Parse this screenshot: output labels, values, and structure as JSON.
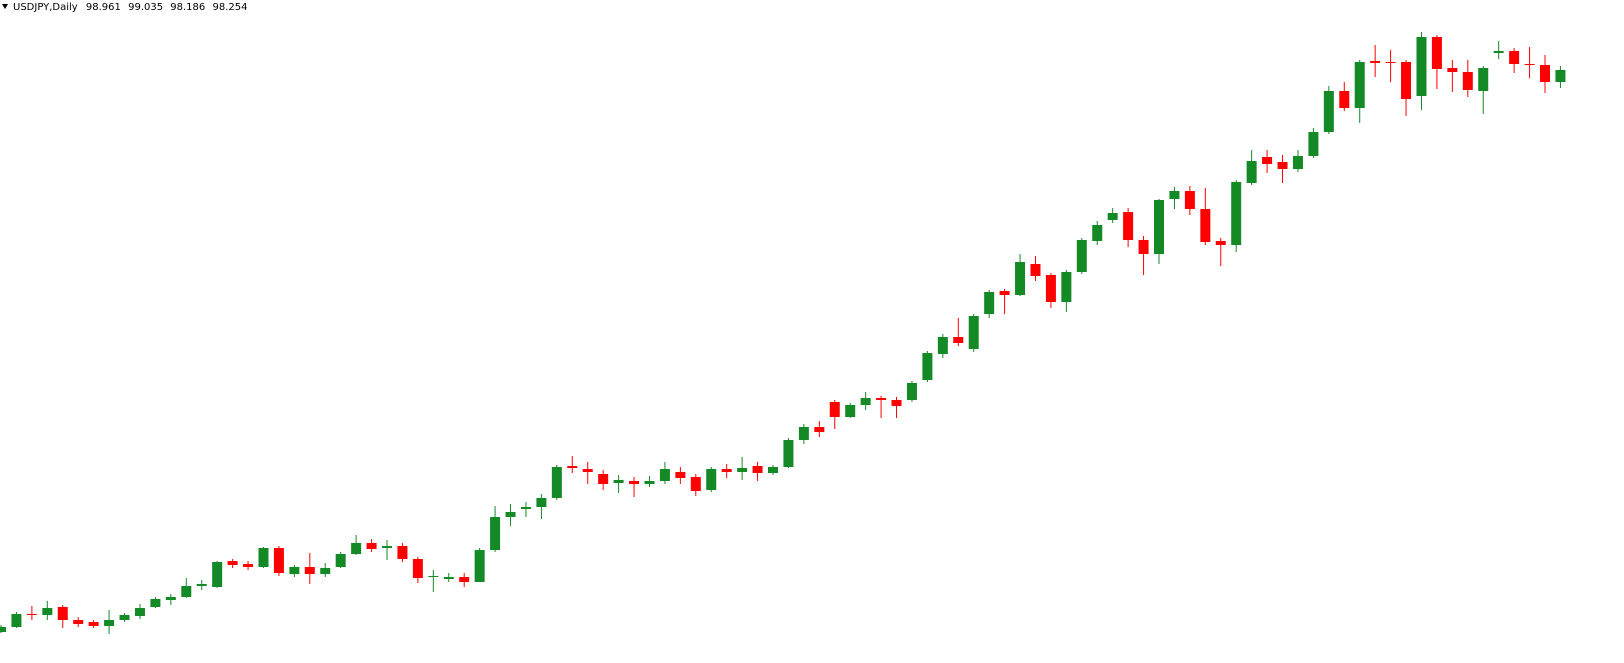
{
  "chart_data": {
    "type": "candlestick",
    "title": "USDJPY,Daily",
    "header_values": [
      98.961,
      99.035,
      98.186,
      98.254
    ],
    "up_color": "#138a26",
    "down_color": "#ff0000",
    "ylim": [
      74.48,
      101
    ],
    "open": [
      75.72,
      75.92,
      76.44,
      76.4,
      76.72,
      76.2,
      76.12,
      75.96,
      76.2,
      76.36,
      76.72,
      77.0,
      77.12,
      77.56,
      77.52,
      78.56,
      78.44,
      78.32,
      79.08,
      78.04,
      78.32,
      78.04,
      78.32,
      78.84,
      79.28,
      79.08,
      79.16,
      78.64,
      77.92,
      77.84,
      77.92,
      77.72,
      79.0,
      80.32,
      80.64,
      80.72,
      81.08,
      82.36,
      82.24,
      82.04,
      81.68,
      81.76,
      81.64,
      81.76,
      82.12,
      81.92,
      81.4,
      82.24,
      82.12,
      82.36,
      82.08,
      82.32,
      83.4,
      83.92,
      84.92,
      84.32,
      84.8,
      85.08,
      85.0,
      85.0,
      85.8,
      86.84,
      87.52,
      87.04,
      88.44,
      89.36,
      89.2,
      90.44,
      90.0,
      88.92,
      90.12,
      91.36,
      92.2,
      92.52,
      91.4,
      90.84,
      93.04,
      93.36,
      92.64,
      91.36,
      91.2,
      93.68,
      94.72,
      94.52,
      94.24,
      94.76,
      95.72,
      97.36,
      96.68,
      98.56,
      98.52,
      98.52,
      97.16,
      99.52,
      98.28,
      98.12,
      97.36,
      98.88,
      98.96,
      98.44,
      98.4,
      97.72
    ],
    "high": [
      76.0,
      76.52,
      76.76,
      76.96,
      76.8,
      76.32,
      76.2,
      76.6,
      76.48,
      76.84,
      77.12,
      77.24,
      77.88,
      77.8,
      78.56,
      78.64,
      78.56,
      79.12,
      79.16,
      78.4,
      78.88,
      78.48,
      78.92,
      79.6,
      79.44,
      79.4,
      79.28,
      78.72,
      78.2,
      78.08,
      78.08,
      79.08,
      80.76,
      80.84,
      80.92,
      81.24,
      82.4,
      82.76,
      82.52,
      82.2,
      82.0,
      81.92,
      81.96,
      82.52,
      82.32,
      82.04,
      82.32,
      82.44,
      82.72,
      82.52,
      82.4,
      83.48,
      84.04,
      84.16,
      85.0,
      84.88,
      85.32,
      85.16,
      85.12,
      85.76,
      86.96,
      87.64,
      88.28,
      88.44,
      89.4,
      89.44,
      90.84,
      90.76,
      90.08,
      90.2,
      91.48,
      92.16,
      92.68,
      92.68,
      91.56,
      93.04,
      93.52,
      93.56,
      93.48,
      91.48,
      93.8,
      95.0,
      95.0,
      94.8,
      95.0,
      95.88,
      97.56,
      97.72,
      98.6,
      99.2,
      99.0,
      98.6,
      99.72,
      99.6,
      98.6,
      98.6,
      98.36,
      99.36,
      99.08,
      99.12,
      98.8,
      98.36
    ],
    "low": [
      75.68,
      75.88,
      76.2,
      76.2,
      75.88,
      75.92,
      75.88,
      75.64,
      76.12,
      76.24,
      76.68,
      76.8,
      77.08,
      77.4,
      77.48,
      78.28,
      78.2,
      78.28,
      77.96,
      77.92,
      77.64,
      77.92,
      78.28,
      78.8,
      78.92,
      78.6,
      78.52,
      77.68,
      77.32,
      77.72,
      77.52,
      77.72,
      78.92,
      79.96,
      80.32,
      80.24,
      81.0,
      82.08,
      81.64,
      81.4,
      81.28,
      81.12,
      81.52,
      81.64,
      81.64,
      81.16,
      81.32,
      81.88,
      81.8,
      81.76,
      82.0,
      82.28,
      83.24,
      83.52,
      83.84,
      84.28,
      84.6,
      84.28,
      84.28,
      84.92,
      85.72,
      86.68,
      87.16,
      86.92,
      88.28,
      88.44,
      89.16,
      89.76,
      88.68,
      88.52,
      90.04,
      91.2,
      92.08,
      91.12,
      90.0,
      90.44,
      92.64,
      92.4,
      91.2,
      90.36,
      90.92,
      93.6,
      94.08,
      93.68,
      94.12,
      94.68,
      95.64,
      96.56,
      96.08,
      97.92,
      97.72,
      96.36,
      96.6,
      97.44,
      97.32,
      97.12,
      96.44,
      98.64,
      98.08,
      97.88,
      97.28,
      97.48
    ],
    "close": [
      75.92,
      76.44,
      76.4,
      76.68,
      76.2,
      76.04,
      75.96,
      76.2,
      76.4,
      76.68,
      77.04,
      77.12,
      77.56,
      77.64,
      78.52,
      78.4,
      78.32,
      79.08,
      78.08,
      78.32,
      78.04,
      78.28,
      78.84,
      79.28,
      79.04,
      79.16,
      78.64,
      77.88,
      77.96,
      77.92,
      77.72,
      79.0,
      80.32,
      80.52,
      80.72,
      81.08,
      82.32,
      82.28,
      82.12,
      81.64,
      81.8,
      81.64,
      81.76,
      82.24,
      81.88,
      81.36,
      82.24,
      82.12,
      82.28,
      82.08,
      82.32,
      83.4,
      83.92,
      83.72,
      84.32,
      84.8,
      85.08,
      85.0,
      84.76,
      85.68,
      86.88,
      87.52,
      87.28,
      88.36,
      89.32,
      89.2,
      90.52,
      89.96,
      88.92,
      90.12,
      91.4,
      92.0,
      92.48,
      91.4,
      90.84,
      93.0,
      93.36,
      92.64,
      91.32,
      91.2,
      93.72,
      94.56,
      94.44,
      94.24,
      94.76,
      95.72,
      97.36,
      96.68,
      98.52,
      98.48,
      98.48,
      97.04,
      99.52,
      98.24,
      98.12,
      97.4,
      98.28,
      98.96,
      98.44,
      98.4,
      97.72,
      98.2
    ]
  }
}
